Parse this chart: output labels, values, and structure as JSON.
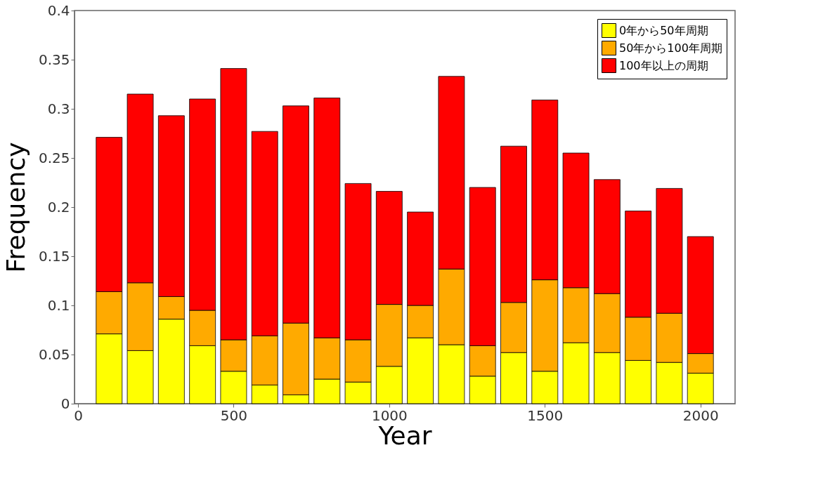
{
  "chart_data": {
    "type": "bar",
    "stacked": true,
    "xlabel": "Year",
    "ylabel": "Frequency",
    "x": [
      100,
      200,
      300,
      400,
      500,
      600,
      700,
      800,
      900,
      1000,
      1100,
      1200,
      1300,
      1400,
      1500,
      1600,
      1700,
      1800,
      1900,
      2000
    ],
    "series": [
      {
        "name": "0年から50年周期",
        "color": "#ffff00",
        "values": [
          0.071,
          0.054,
          0.086,
          0.059,
          0.033,
          0.019,
          0.009,
          0.025,
          0.022,
          0.038,
          0.067,
          0.06,
          0.028,
          0.052,
          0.033,
          0.062,
          0.052,
          0.044,
          0.042,
          0.031
        ]
      },
      {
        "name": "50年から100年周期",
        "color": "#ffaa00",
        "values": [
          0.043,
          0.069,
          0.023,
          0.036,
          0.032,
          0.05,
          0.073,
          0.042,
          0.043,
          0.063,
          0.033,
          0.077,
          0.031,
          0.051,
          0.093,
          0.056,
          0.06,
          0.044,
          0.05,
          0.02
        ]
      },
      {
        "name": "100年以上の周期",
        "color": "#ff0000",
        "values": [
          0.157,
          0.192,
          0.184,
          0.215,
          0.276,
          0.208,
          0.221,
          0.244,
          0.159,
          0.115,
          0.095,
          0.196,
          0.161,
          0.159,
          0.183,
          0.137,
          0.116,
          0.108,
          0.127,
          0.119
        ]
      }
    ],
    "xlim": [
      0,
      2100
    ],
    "xticks": [
      0,
      500,
      1000,
      1500,
      2000
    ],
    "ylim": [
      0,
      0.4
    ],
    "yticks": [
      0,
      0.05,
      0.1,
      0.15,
      0.2,
      0.25,
      0.3,
      0.35,
      0.4
    ],
    "grid": false,
    "legend": "top right"
  }
}
